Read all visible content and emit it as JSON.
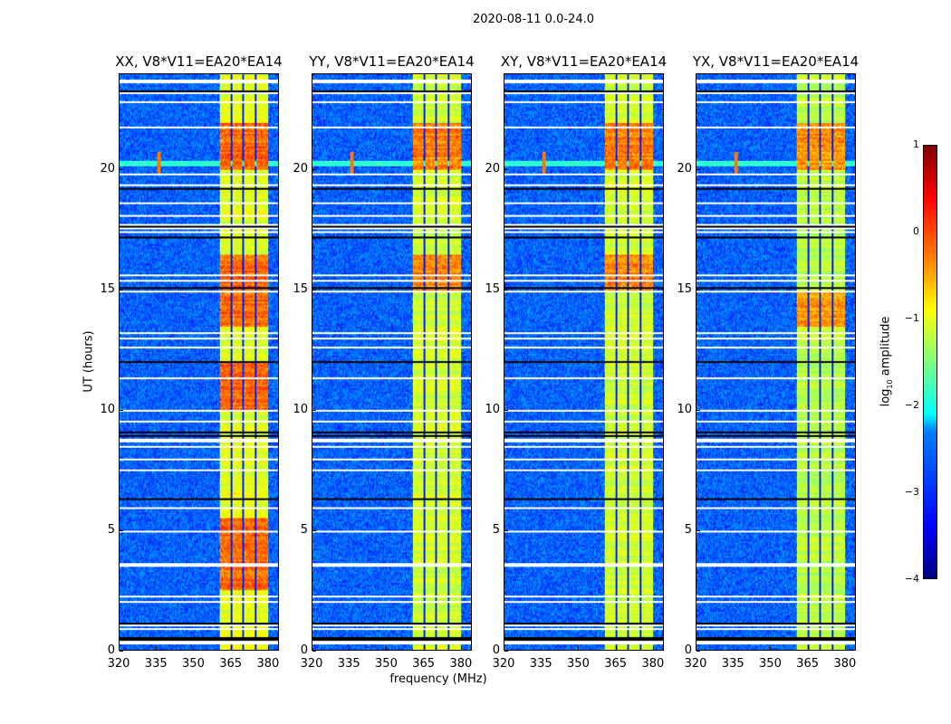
{
  "suptitle": "2020-08-11 0.0-24.0",
  "xlabel": "frequency (MHz)",
  "ylabel": "UT (hours)",
  "colorbar": {
    "label": "log10 amplitude",
    "label_main": "log",
    "label_sub": "10",
    "label_rest": " amplitude",
    "ticks": [
      "1",
      "0",
      "−1",
      "−2",
      "−3",
      "−4"
    ],
    "tick_values": [
      1,
      0,
      -1,
      -2,
      -3,
      -4
    ],
    "range": [
      -4,
      1
    ],
    "colormap": "jet"
  },
  "chart_data": [
    {
      "type": "heatmap",
      "title": "XX, V8*V11=EA20*EA14",
      "xlim": [
        320,
        384.4
      ],
      "ylim": [
        0,
        24
      ],
      "xticks": [
        "320",
        "335",
        "350",
        "365",
        "380"
      ],
      "xtick_values": [
        320,
        335,
        350,
        365,
        380
      ],
      "yticks": [
        "0",
        "5",
        "10",
        "15",
        "20"
      ],
      "ytick_values": [
        0,
        5,
        10,
        15,
        20
      ],
      "band_level": -1.0,
      "strong_periods": [
        [
          2.5,
          5.5
        ],
        [
          10,
          12
        ],
        [
          13.5,
          16.5
        ],
        [
          20,
          22
        ]
      ]
    },
    {
      "type": "heatmap",
      "title": "YY, V8*V11=EA20*EA14",
      "xlim": [
        320,
        384.4
      ],
      "ylim": [
        0,
        24
      ],
      "xticks": [
        "320",
        "335",
        "350",
        "365",
        "380"
      ],
      "xtick_values": [
        320,
        335,
        350,
        365,
        380
      ],
      "yticks": [
        "0",
        "5",
        "10",
        "15",
        "20"
      ],
      "ytick_values": [
        0,
        5,
        10,
        15,
        20
      ],
      "band_level": -1.1,
      "strong_periods": [
        [
          15,
          16.5
        ],
        [
          20,
          22
        ]
      ]
    },
    {
      "type": "heatmap",
      "title": "XY, V8*V11=EA20*EA14",
      "xlim": [
        320,
        384.4
      ],
      "ylim": [
        0,
        24
      ],
      "xticks": [
        "320",
        "335",
        "350",
        "365",
        "380"
      ],
      "xtick_values": [
        320,
        335,
        350,
        365,
        380
      ],
      "yticks": [
        "0",
        "5",
        "10",
        "15",
        "20"
      ],
      "ytick_values": [
        0,
        5,
        10,
        15,
        20
      ],
      "band_level": -1.1,
      "strong_periods": [
        [
          15,
          16.5
        ],
        [
          20,
          22
        ]
      ]
    },
    {
      "type": "heatmap",
      "title": "YX, V8*V11=EA20*EA14",
      "xlim": [
        320,
        384.4
      ],
      "ylim": [
        0,
        24
      ],
      "xticks": [
        "320",
        "335",
        "350",
        "365",
        "380"
      ],
      "xtick_values": [
        320,
        335,
        350,
        365,
        380
      ],
      "yticks": [
        "0",
        "5",
        "10",
        "15",
        "20"
      ],
      "ytick_values": [
        0,
        5,
        10,
        15,
        20
      ],
      "band_level": -1.2,
      "strong_periods": [
        [
          13.5,
          15
        ],
        [
          20,
          22
        ]
      ]
    }
  ],
  "shared": {
    "background_level": -2.9,
    "band_mhz": [
      360.7,
      380.4
    ],
    "band_gaps_mhz": [
      365.5,
      370.2,
      375.4
    ],
    "flagged_hours": [
      0.3,
      0.35,
      0.9,
      1.05,
      2.0,
      2.25,
      3.5,
      3.6,
      4.9,
      5.9,
      7.5,
      7.95,
      8.45,
      8.7,
      8.8,
      9.55,
      10.0,
      11.3,
      12.6,
      13.0,
      13.2,
      14.9,
      15.4,
      15.6,
      17.4,
      17.55,
      17.7,
      18.1,
      18.6,
      19.4,
      19.8,
      21.8,
      22.8,
      23.25,
      23.7
    ],
    "dead_hours": [
      0.4,
      0.5,
      1.1,
      8.95,
      9.05,
      6.3,
      12.0,
      15.1,
      17.2,
      17.65,
      19.25,
      23.3
    ],
    "rfi_line_hour": 20.25,
    "rfi_spike_mhz": 336
  }
}
